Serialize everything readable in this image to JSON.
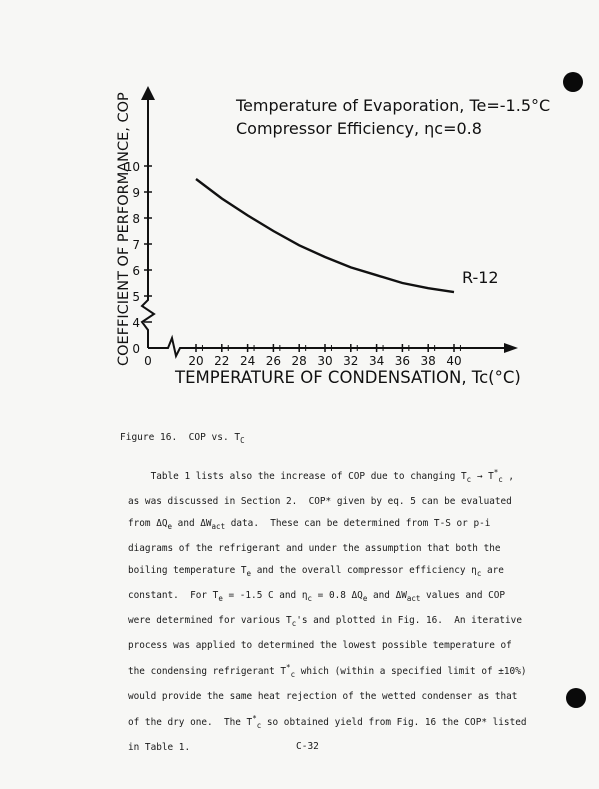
{
  "chart_data": {
    "type": "line",
    "title_line1": "Temperature of Evaporation, Te=-1.5°C",
    "title_line2": "Compressor Efficiency, ηc=0.8",
    "xlabel": "TEMPERATURE OF CONDENSATION, Tc(°C)",
    "ylabel": "COEFFICIENT OF PERFORMANCE, COP",
    "x_ticks": [
      "0",
      "20",
      "22",
      "24",
      "26",
      "28",
      "30",
      "32",
      "34",
      "36",
      "38",
      "40"
    ],
    "y_ticks": [
      "0",
      "4",
      "5",
      "6",
      "7",
      "8",
      "9",
      "10"
    ],
    "xlim": [
      18,
      42
    ],
    "ylim": [
      3,
      10.5
    ],
    "axis_breaks": true,
    "grid": false,
    "series": [
      {
        "name": "R-12",
        "x": [
          20,
          22,
          24,
          26,
          28,
          30,
          32,
          34,
          36,
          38,
          40
        ],
        "y": [
          9.5,
          8.75,
          8.1,
          7.5,
          6.95,
          6.5,
          6.1,
          5.8,
          5.5,
          5.3,
          5.15
        ]
      }
    ]
  },
  "caption": {
    "label": "Figure 16.",
    "text": "COP vs. T",
    "sub": "C"
  },
  "body_lines": [
    [
      "    Table 1 lists also the increase of COP due to changing T",
      {
        "sub": "c"
      },
      " → T",
      {
        "sup": "*"
      },
      {
        "sub": "c"
      },
      " ,"
    ],
    [
      "as was discussed in Section 2.  COP* given by eq. 5 can be evaluated"
    ],
    [
      "from ΔQ",
      {
        "sub": "e"
      },
      " and ΔW",
      {
        "sub": "act"
      },
      " data.  These can be determined from T-S or p-i"
    ],
    [
      "diagrams of the refrigerant and under the assumption that both the"
    ],
    [
      "boiling temperature T",
      {
        "sub": "e"
      },
      " and the overall compressor efficiency η",
      {
        "sub": "c"
      },
      " are"
    ],
    [
      "constant.  For T",
      {
        "sub": "e"
      },
      " = -1.5 C and η",
      {
        "sub": "c"
      },
      " = 0.8 ΔQ",
      {
        "sub": "e"
      },
      " and ΔW",
      {
        "sub": "act"
      },
      " values and COP"
    ],
    [
      "were determined for various T",
      {
        "sub": "c"
      },
      "'s and plotted in Fig. 16.  An iterative"
    ],
    [
      "process was applied to determined the lowest possible temperature of"
    ],
    [
      "the condensing refrigerant T",
      {
        "sup": "*"
      },
      {
        "sub": "c"
      },
      " which (within a specified limit of ±10%)"
    ],
    [
      "would provide the same heat rejection of the wetted condenser as that"
    ],
    [
      "of the dry one.  The T",
      {
        "sup": "*"
      },
      {
        "sub": "c"
      },
      " so obtained yield from Fig. 16 the COP* listed"
    ],
    [
      "in Table 1."
    ]
  ],
  "page_number": "C-32",
  "colors": {
    "ink": "#111111",
    "paper": "#f7f7f5",
    "punch": "#0a0a0a"
  }
}
